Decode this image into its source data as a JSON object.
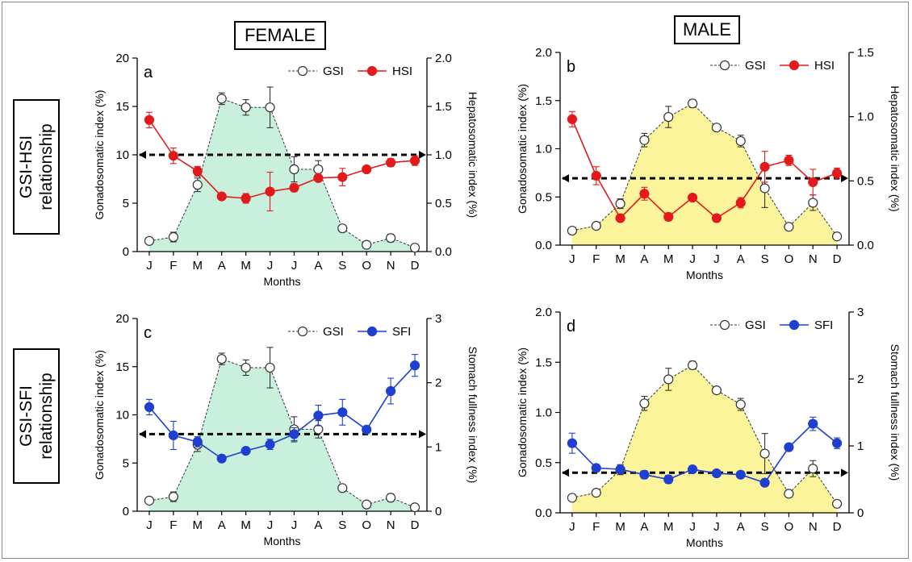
{
  "headers": {
    "female": "FEMALE",
    "male": "MALE"
  },
  "row_labels": {
    "top": [
      "GSI-HSI",
      "relationship"
    ],
    "bottom": [
      "GSI-SFI",
      "relationship"
    ]
  },
  "chart_data": [
    {
      "panel": "a",
      "type": "line",
      "categories": [
        "J",
        "F",
        "M",
        "A",
        "M",
        "J",
        "J",
        "A",
        "S",
        "O",
        "N",
        "D"
      ],
      "xlabel": "Months",
      "ylabel": "Gonadosomatic index (%)",
      "y2label": "Hepatosomatic index (%)",
      "ylim": [
        0,
        20
      ],
      "yticks": [
        0,
        5,
        10,
        15,
        20
      ],
      "yticklabels": [
        "0",
        "5",
        "10",
        "15",
        "20"
      ],
      "y2lim": [
        0,
        2.0
      ],
      "y2ticks": [
        0,
        0.5,
        1.0,
        1.5,
        2.0
      ],
      "y2ticklabels": [
        "0.0",
        "0.5",
        "1.0",
        "1.5",
        "2.0"
      ],
      "fill_color": "#c8f0dc",
      "reference_line_y2": 1.0,
      "legend_position": "top-right",
      "series": [
        {
          "name": "GSI",
          "axis": "left",
          "style": "open-circle-dashed",
          "color": "#333333",
          "values": [
            1.1,
            1.5,
            6.9,
            15.8,
            14.9,
            14.9,
            8.5,
            8.5,
            2.4,
            0.7,
            1.4,
            0.4
          ],
          "errors": [
            0.2,
            0.5,
            0.7,
            0.6,
            0.8,
            2.1,
            1.3,
            0.9,
            0.2,
            0.2,
            0.4,
            0.1
          ]
        },
        {
          "name": "HSI",
          "axis": "right",
          "style": "filled-circle-solid",
          "color": "#e31a1c",
          "values": [
            1.36,
            0.99,
            0.83,
            0.57,
            0.55,
            0.62,
            0.66,
            0.76,
            0.77,
            0.85,
            0.92,
            0.94
          ],
          "errors": [
            0.08,
            0.08,
            0.05,
            0.02,
            0.05,
            0.2,
            0.04,
            0.03,
            0.09,
            0.02,
            0.04,
            0.05
          ]
        }
      ]
    },
    {
      "panel": "b",
      "type": "line",
      "categories": [
        "J",
        "F",
        "M",
        "A",
        "M",
        "J",
        "J",
        "A",
        "S",
        "O",
        "N",
        "D"
      ],
      "xlabel": "Months",
      "ylabel": "Gonadosomatic index (%)",
      "y2label": "Hepatosomatic index (%)",
      "ylim": [
        0,
        2.0
      ],
      "yticks": [
        0,
        0.5,
        1.0,
        1.5,
        2.0
      ],
      "yticklabels": [
        "0.0",
        "0.5",
        "1.0",
        "1.5",
        "2.0"
      ],
      "y2lim": [
        0,
        1.5
      ],
      "y2ticks": [
        0,
        0.5,
        1.0,
        1.5
      ],
      "y2ticklabels": [
        "0.0",
        "0.5",
        "1.0",
        "1.5"
      ],
      "fill_color": "#fbf49a",
      "reference_line_y2": 0.52,
      "legend_position": "top-right",
      "series": [
        {
          "name": "GSI",
          "axis": "left",
          "style": "open-circle-dashed",
          "color": "#333333",
          "values": [
            0.15,
            0.2,
            0.43,
            1.09,
            1.33,
            1.47,
            1.22,
            1.08,
            0.59,
            0.19,
            0.44,
            0.09
          ],
          "errors": [
            0.02,
            0.02,
            0.05,
            0.07,
            0.11,
            0.04,
            0.02,
            0.06,
            0.2,
            0.02,
            0.08,
            0.02
          ]
        },
        {
          "name": "HSI",
          "axis": "right",
          "style": "filled-circle-solid",
          "color": "#e31a1c",
          "values": [
            0.98,
            0.54,
            0.21,
            0.4,
            0.22,
            0.37,
            0.21,
            0.33,
            0.61,
            0.66,
            0.49,
            0.56
          ],
          "errors": [
            0.06,
            0.07,
            0.02,
            0.05,
            0.03,
            0.02,
            0.01,
            0.04,
            0.12,
            0.04,
            0.1,
            0.04
          ]
        }
      ]
    },
    {
      "panel": "c",
      "type": "line",
      "categories": [
        "J",
        "F",
        "M",
        "A",
        "M",
        "J",
        "J",
        "A",
        "S",
        "O",
        "N",
        "D"
      ],
      "xlabel": "Months",
      "ylabel": "Gonadosomatic index (%)",
      "y2label": "Stomach fullness index (%)",
      "ylim": [
        0,
        20
      ],
      "yticks": [
        0,
        5,
        10,
        15,
        20
      ],
      "yticklabels": [
        "0",
        "5",
        "10",
        "15",
        "20"
      ],
      "y2lim": [
        0,
        3
      ],
      "y2ticks": [
        0,
        1,
        2,
        3
      ],
      "y2ticklabels": [
        "0",
        "1",
        "2",
        "3"
      ],
      "fill_color": "#c8f0dc",
      "reference_line_y2": 1.2,
      "legend_position": "top-right",
      "series": [
        {
          "name": "GSI",
          "axis": "left",
          "style": "open-circle-dashed",
          "color": "#333333",
          "values": [
            1.1,
            1.5,
            6.9,
            15.8,
            14.9,
            14.9,
            8.5,
            8.5,
            2.4,
            0.7,
            1.4,
            0.4
          ],
          "errors": [
            0.2,
            0.5,
            0.7,
            0.6,
            0.8,
            2.1,
            1.3,
            0.9,
            0.2,
            0.2,
            0.4,
            0.1
          ]
        },
        {
          "name": "SFI",
          "axis": "right",
          "style": "filled-circle-solid",
          "color": "#1f3fd1",
          "values": [
            1.62,
            1.18,
            1.08,
            0.82,
            0.94,
            1.04,
            1.2,
            1.49,
            1.54,
            1.27,
            1.87,
            2.27
          ],
          "errors": [
            0.12,
            0.22,
            0.08,
            0.03,
            0.05,
            0.08,
            0.1,
            0.16,
            0.2,
            0.03,
            0.2,
            0.17
          ]
        }
      ]
    },
    {
      "panel": "d",
      "type": "line",
      "categories": [
        "J",
        "F",
        "M",
        "A",
        "M",
        "J",
        "J",
        "A",
        "S",
        "O",
        "N",
        "D"
      ],
      "xlabel": "Months",
      "ylabel": "Gonadosomatic index (%)",
      "y2label": "Stomach fullness index (%)",
      "ylim": [
        0,
        2.0
      ],
      "yticks": [
        0,
        0.5,
        1.0,
        1.5,
        2.0
      ],
      "yticklabels": [
        "0.0",
        "0.5",
        "1.0",
        "1.5",
        "2.0"
      ],
      "y2lim": [
        0,
        3
      ],
      "y2ticks": [
        0,
        1,
        2,
        3
      ],
      "y2ticklabels": [
        "0",
        "1",
        "2",
        "3"
      ],
      "fill_color": "#fbf49a",
      "reference_line_y2": 0.6,
      "legend_position": "top-right",
      "series": [
        {
          "name": "GSI",
          "axis": "left",
          "style": "open-circle-dashed",
          "color": "#333333",
          "values": [
            0.15,
            0.2,
            0.43,
            1.09,
            1.33,
            1.47,
            1.22,
            1.08,
            0.59,
            0.19,
            0.44,
            0.09
          ],
          "errors": [
            0.02,
            0.02,
            0.05,
            0.07,
            0.11,
            0.04,
            0.02,
            0.06,
            0.2,
            0.02,
            0.08,
            0.02
          ]
        },
        {
          "name": "SFI",
          "axis": "right",
          "style": "filled-circle-solid",
          "color": "#1f3fd1",
          "values": [
            1.04,
            0.67,
            0.65,
            0.57,
            0.5,
            0.65,
            0.59,
            0.57,
            0.45,
            0.98,
            1.33,
            1.04
          ],
          "errors": [
            0.15,
            0.03,
            0.03,
            0.06,
            0.06,
            0.03,
            0.04,
            0.03,
            0.02,
            0.04,
            0.1,
            0.08
          ]
        }
      ]
    }
  ]
}
